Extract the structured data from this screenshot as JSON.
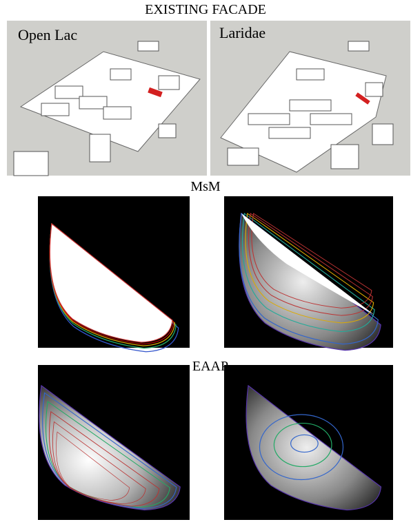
{
  "header": {
    "title": "EXISTING FACADE"
  },
  "panels": [
    {
      "label": "Open Lac"
    },
    {
      "label": "Laridae"
    }
  ],
  "sections": [
    {
      "title": "MsM"
    },
    {
      "title": "EAAP"
    }
  ]
}
